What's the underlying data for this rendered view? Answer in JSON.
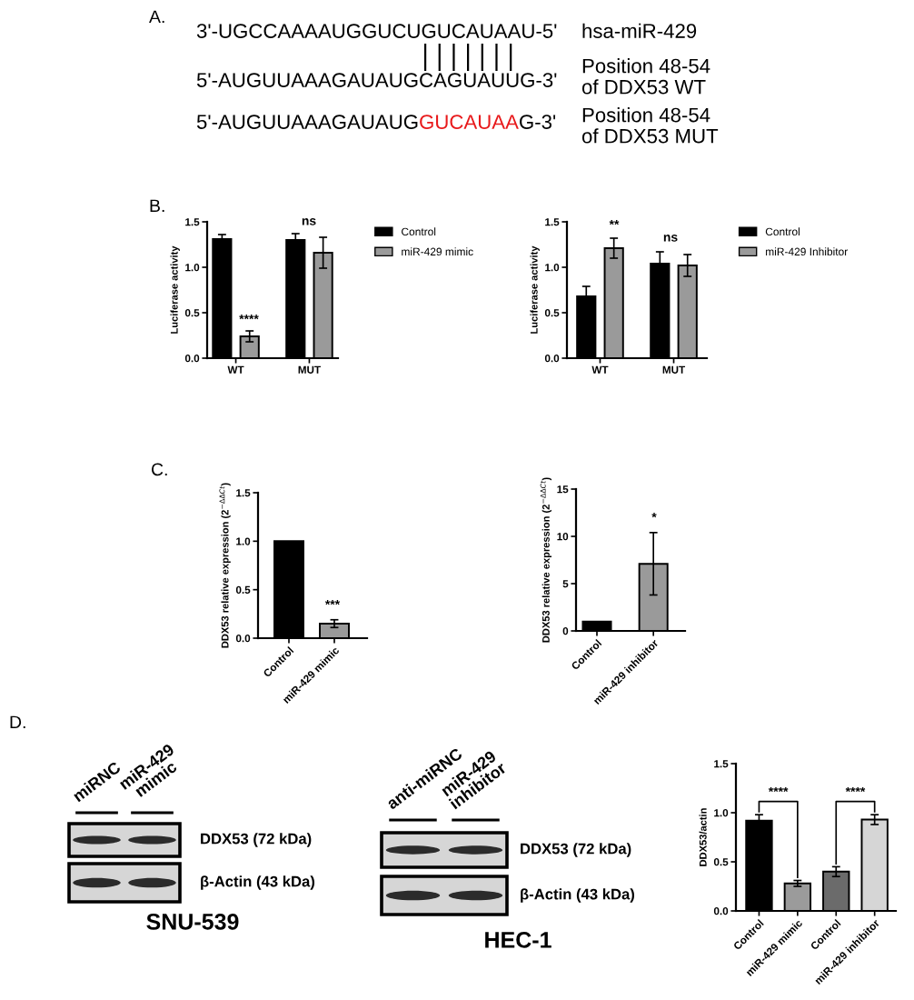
{
  "chart_data": [
    {
      "type": "other",
      "title": "A.",
      "annotations": [
        "3'-UGCCAAAAUGGUCUGUCAUAAU-5'",
        "hsa-miR-429",
        "5'-AUGUUAAAGAUAUGCAGUAUUG-3'",
        "Position 48-54\nof DDX53 WT",
        "5'-AUGUUAAAGAUAUG",
        "GUCAUAA",
        "G-3'",
        "Position 48-54\nof DDX53 MUT"
      ],
      "colors": [
        "#000000",
        "#000000",
        "#000000",
        "#000000",
        "#000000",
        "#e8191b",
        "#000000",
        "#000000"
      ]
    },
    {
      "type": "bar",
      "title": "B.",
      "categories": [
        "WT",
        "MUT"
      ],
      "series": [
        {
          "name": "Control",
          "color": "#000000",
          "values": [
            1.31,
            1.3
          ],
          "errors": [
            0.05,
            0.07
          ]
        },
        {
          "name": "miR-429 mimic",
          "color": "#9a9a9a",
          "values": [
            0.24,
            1.16
          ],
          "errors": [
            0.06,
            0.17
          ]
        }
      ],
      "ylabel": "Luciferase activity",
      "ylim": [
        0,
        1.5
      ],
      "yticks": [
        {
          "value": 0,
          "label": "0.0"
        },
        {
          "value": 0.5,
          "label": "0.5"
        },
        {
          "value": 1,
          "label": "1.0"
        },
        {
          "value": 1.5,
          "label": "1.5"
        }
      ],
      "legend": "top right",
      "annotations": [
        "****",
        "ns"
      ]
    },
    {
      "type": "bar",
      "categories": [
        "WT",
        "MUT"
      ],
      "series": [
        {
          "name": "Control",
          "color": "#000000",
          "values": [
            0.68,
            1.04
          ],
          "errors": [
            0.11,
            0.13
          ]
        },
        {
          "name": "miR-429 Inhibitor",
          "color": "#9a9a9a",
          "values": [
            1.21,
            1.02
          ],
          "errors": [
            0.11,
            0.12
          ]
        }
      ],
      "ylabel": "Luciferase activity",
      "ylim": [
        0,
        1.5
      ],
      "yticks": [
        {
          "value": 0,
          "label": "0.0"
        },
        {
          "value": 0.5,
          "label": "0.5"
        },
        {
          "value": 1,
          "label": "1.0"
        },
        {
          "value": 1.5,
          "label": "1.5"
        }
      ],
      "legend": "top right",
      "annotations": [
        "**",
        "ns"
      ]
    },
    {
      "type": "bar",
      "title": "C.",
      "categories": [
        "Control",
        "miR-429 mimic"
      ],
      "values": [
        1.0,
        0.15
      ],
      "errors": [
        null,
        0.04
      ],
      "colors": [
        "#000000",
        "#9a9a9a"
      ],
      "ylabel": "DDX53 relative expression (2$^{−ΔΔCt}$)",
      "ylim": [
        0,
        1.5
      ],
      "yticks": [
        {
          "value": 0,
          "label": "0.0"
        },
        {
          "value": 0.5,
          "label": "0.5"
        },
        {
          "value": 1,
          "label": "1.0"
        },
        {
          "value": 1.5,
          "label": "1.5"
        }
      ],
      "annotations": [
        "***"
      ]
    },
    {
      "type": "bar",
      "categories": [
        "Control",
        "miR-429 inhibitor"
      ],
      "values": [
        1.0,
        7.1
      ],
      "errors": [
        null,
        3.3
      ],
      "colors": [
        "#000000",
        "#9a9a9a"
      ],
      "ylabel": "DDX53 relative expression (2$^{−ΔΔCt}$)",
      "ylim": [
        0,
        15
      ],
      "yticks": [
        0,
        5,
        10,
        15
      ],
      "annotations": [
        "*"
      ]
    },
    {
      "type": "other",
      "title": "D.",
      "categories": [
        "miRNC",
        "miR-429\nmimic"
      ],
      "y_categories": [
        "DDX53 (72 kDa)",
        "β-Actin (43 kDa)"
      ],
      "xlabel": "SNU-539"
    },
    {
      "type": "other",
      "categories": [
        "anti-miRNC",
        "miR-429\ninhibitor"
      ],
      "y_categories": [
        "DDX53 (72 kDa)",
        "β-Actin (43 kDa)"
      ],
      "xlabel": "HEC-1"
    },
    {
      "type": "bar",
      "categories": [
        "Control",
        "miR-429 mimic",
        "Control",
        "miR-429 inhibitor"
      ],
      "values": [
        0.92,
        0.28,
        0.4,
        0.93
      ],
      "errors": [
        0.06,
        0.03,
        0.05,
        0.05
      ],
      "colors": [
        "#000000",
        "#9b9b9b",
        "#6b6b6b",
        "#d6d6d6"
      ],
      "ylabel": "DDX53/actin",
      "ylim": [
        0,
        1.5
      ],
      "yticks": [
        {
          "value": 0,
          "label": "0.0"
        },
        {
          "value": 0.5,
          "label": "0.5"
        },
        {
          "value": 1,
          "label": "1.0"
        },
        {
          "value": 1.5,
          "label": "1.5"
        }
      ],
      "annotations": [
        "****",
        "****"
      ]
    }
  ]
}
